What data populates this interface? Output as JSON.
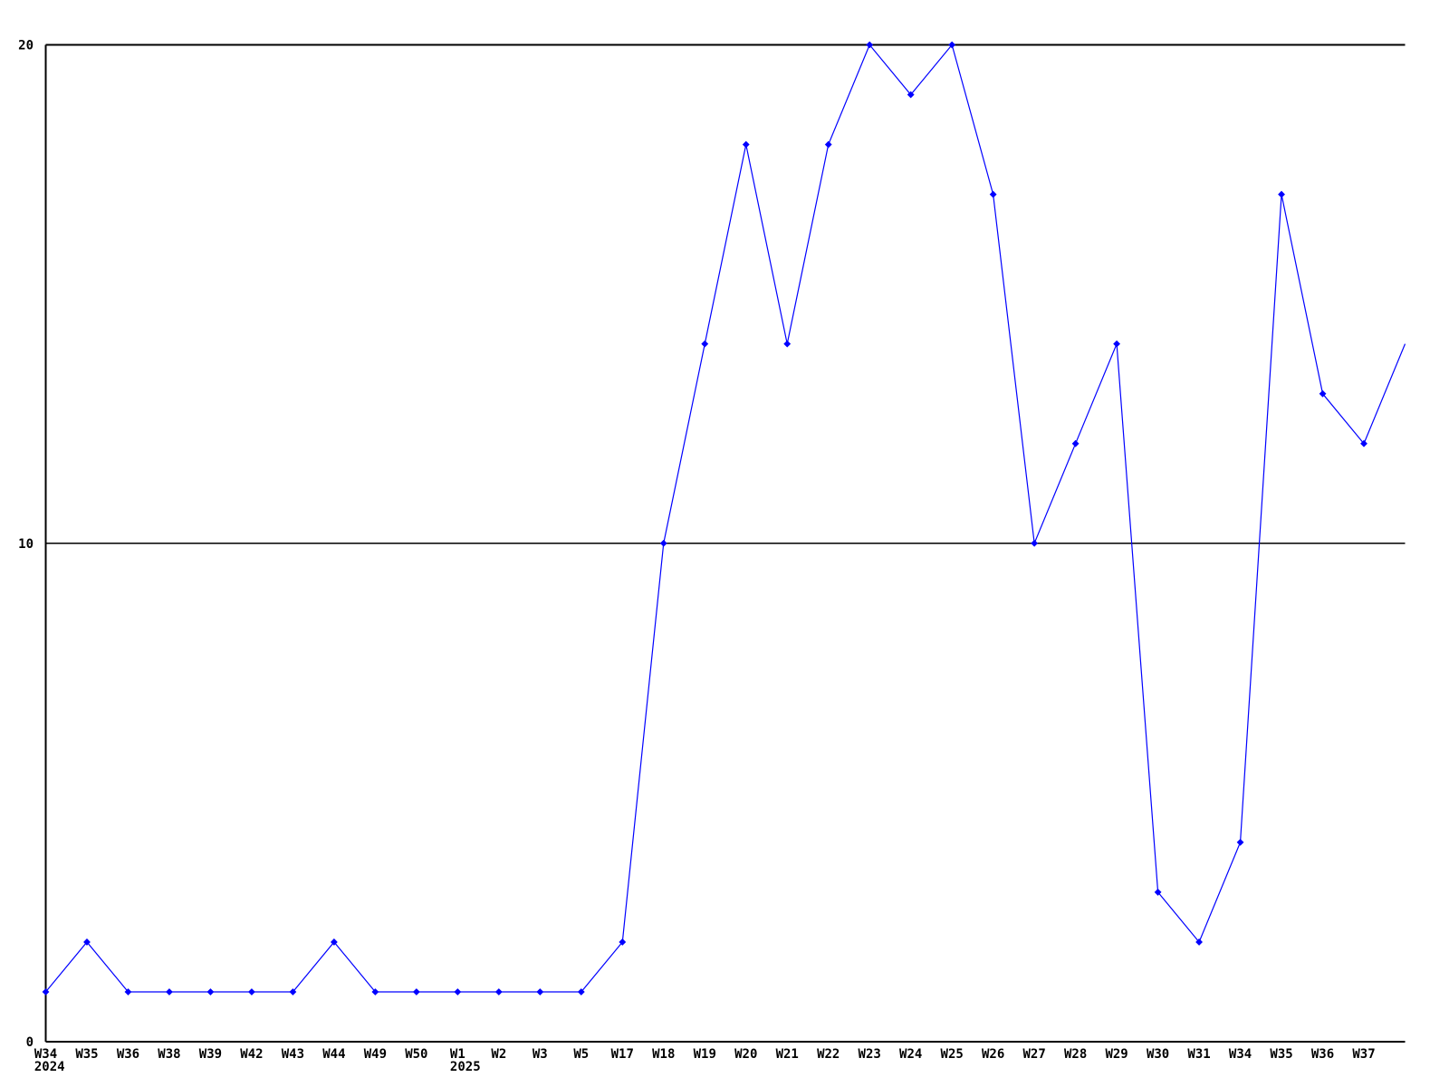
{
  "chart_data": {
    "type": "line",
    "title": "",
    "xlabel": "",
    "ylabel": "",
    "categories": [
      "W34",
      "W35",
      "W36",
      "W38",
      "W39",
      "W42",
      "W43",
      "W44",
      "W49",
      "W50",
      "W1",
      "W2",
      "W3",
      "W5",
      "W17",
      "W18",
      "W19",
      "W20",
      "W21",
      "W22",
      "W23",
      "W24",
      "W25",
      "W26",
      "W27",
      "W28",
      "W29",
      "W30",
      "W31",
      "W34",
      "W35",
      "W36",
      "W37",
      ""
    ],
    "values": [
      1,
      2,
      1,
      1,
      1,
      1,
      1,
      2,
      1,
      1,
      1,
      1,
      1,
      1,
      2,
      10,
      14,
      18,
      14,
      18,
      20,
      19,
      20,
      17,
      10,
      12,
      14,
      3,
      2,
      4,
      17,
      13,
      12,
      14
    ],
    "year_annotations": [
      {
        "index": 0,
        "label": "2024"
      },
      {
        "index": 10,
        "label": "2025"
      }
    ],
    "y_ticks": [
      0,
      10,
      20
    ],
    "ylim": [
      0,
      20
    ],
    "grid": true,
    "legend_position": "none",
    "line_color": "#0000ff",
    "axis_color": "#000000",
    "background_color": "#ffffff",
    "marker": "diamond",
    "last_point_unlabeled": true
  }
}
